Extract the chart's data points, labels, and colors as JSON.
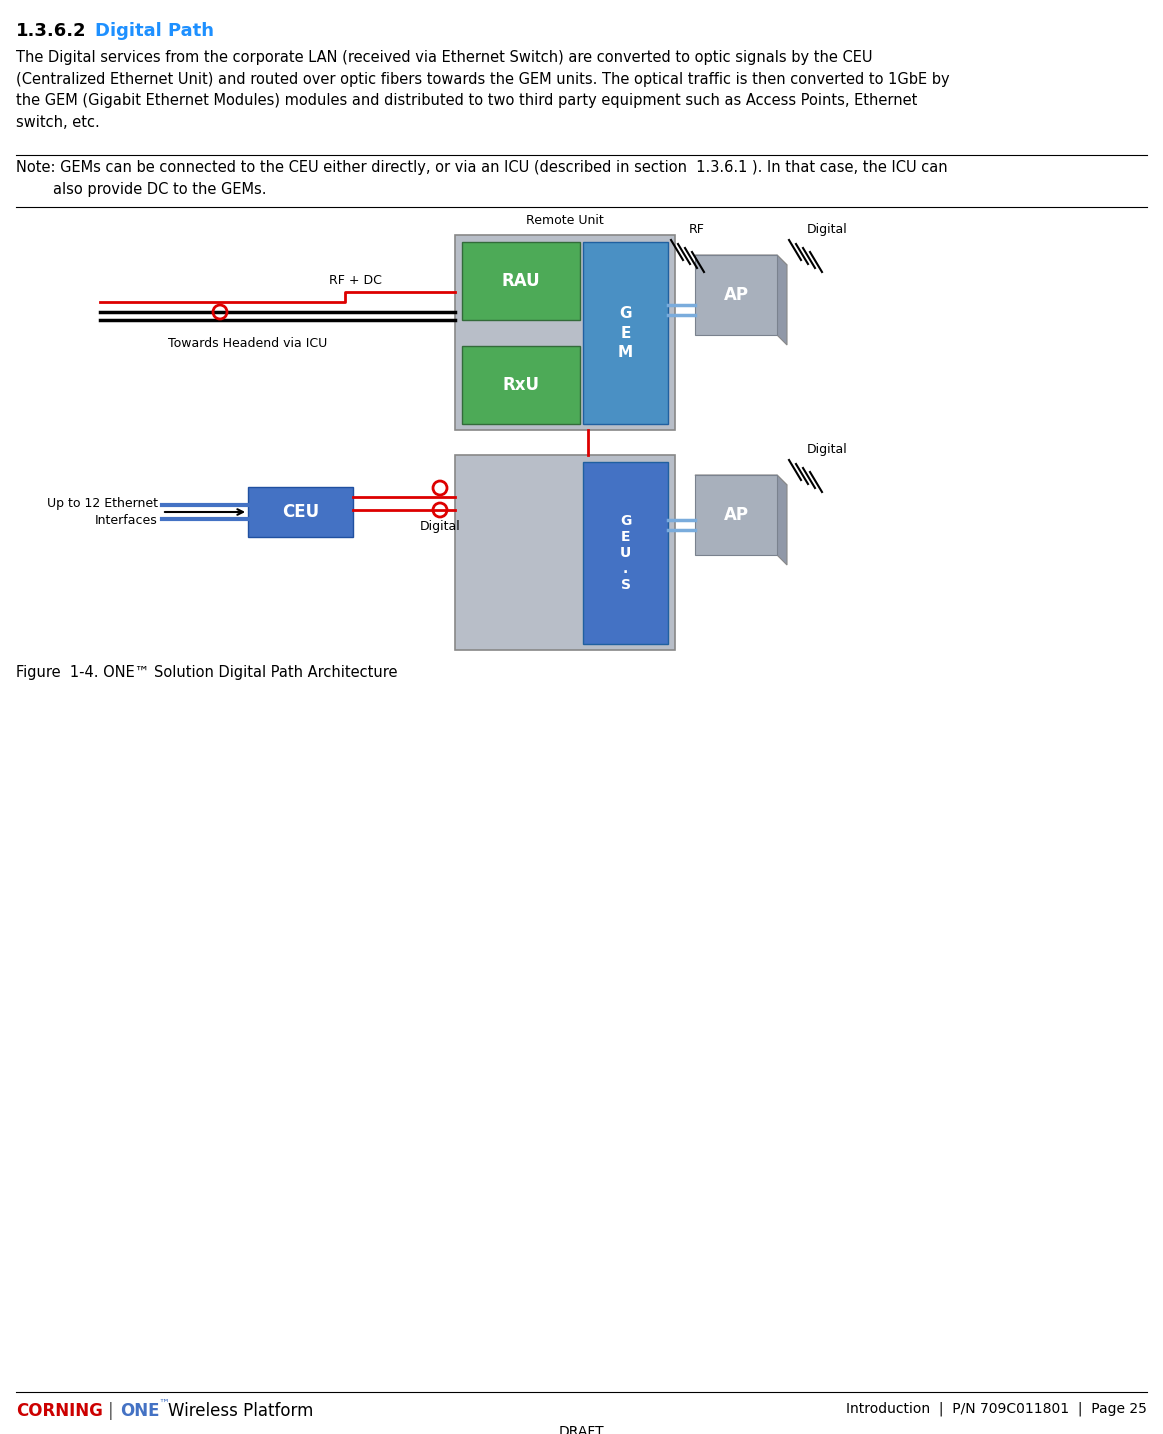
{
  "title_section": "1.3.6.2",
  "title_text": "Digital Path",
  "body_text": "The Digital services from the corporate LAN (received via Ethernet Switch) are converted to optic signals by the CEU\n(Centralized Ethernet Unit) and routed over optic fibers towards the GEM units. The optical traffic is then converted to 1GbE by\nthe GEM (Gigabit Ethernet Modules) modules and distributed to two third party equipment such as Access Points, Ethernet\nswitch, etc.",
  "note_text": "Note: GEMs can be connected to the CEU either directly, or via an ICU (described in section  1.3.6.1 ). In that case, the ICU can\n        also provide DC to the GEMs.",
  "figure_caption": "Figure  1-4. ONE™ Solution Digital Path Architecture",
  "footer_right": "Introduction  |  P/N 709C011801  |  Page 25",
  "footer_center": "DRAFT",
  "title_color": "#1e90ff",
  "red_color": "#dd0000",
  "blue_gem": "#4a90c4",
  "blue_ceu": "#4472c4",
  "green_rau": "#4daa57",
  "gray_cont": "#b8bec8",
  "gray_ap": "#a8b0bc",
  "bg_color": "#ffffff"
}
